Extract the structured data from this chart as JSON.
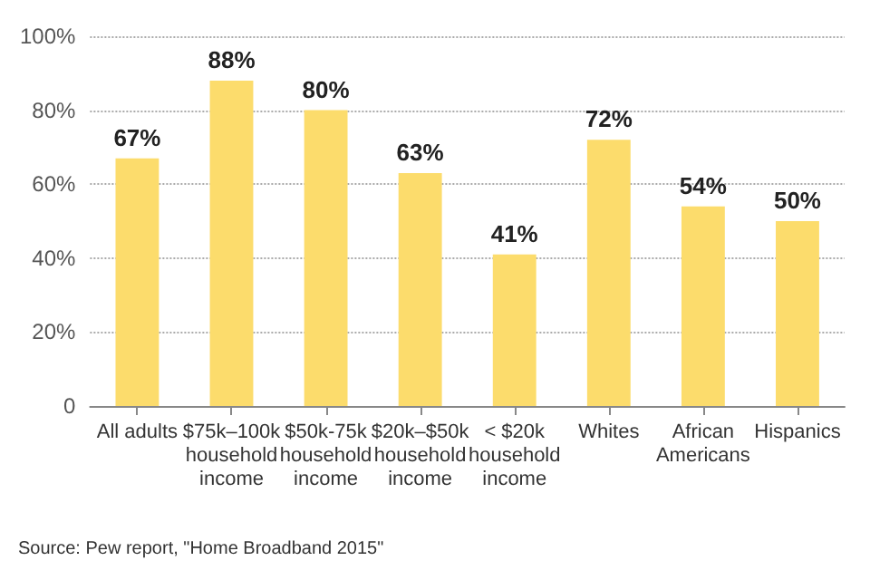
{
  "chart_data": {
    "type": "bar",
    "categories": [
      "All adults",
      "$75k–100k\nhousehold\nincome",
      "$50k-75k\nhousehold\nincome",
      "$20k–$50k\nhousehold\nincome",
      "< $20k\nhousehold\nincome",
      "Whites",
      "African\nAmericans",
      "Hispanics"
    ],
    "values": [
      67,
      88,
      80,
      63,
      41,
      72,
      54,
      50
    ],
    "value_labels": [
      "67%",
      "88%",
      "80%",
      "63%",
      "41%",
      "72%",
      "54%",
      "50%"
    ],
    "color": "#fcdc6c",
    "ylim": [
      0,
      100
    ],
    "yticks": [
      {
        "value": 0,
        "label": "0"
      },
      {
        "value": 20,
        "label": "20%"
      },
      {
        "value": 40,
        "label": "40%"
      },
      {
        "value": 60,
        "label": "60%"
      },
      {
        "value": 80,
        "label": "80%"
      },
      {
        "value": 100,
        "label": "100%"
      }
    ],
    "grid": "y",
    "annotations": [
      "Source: Pew report, \"Home Broadband 2015\""
    ]
  }
}
